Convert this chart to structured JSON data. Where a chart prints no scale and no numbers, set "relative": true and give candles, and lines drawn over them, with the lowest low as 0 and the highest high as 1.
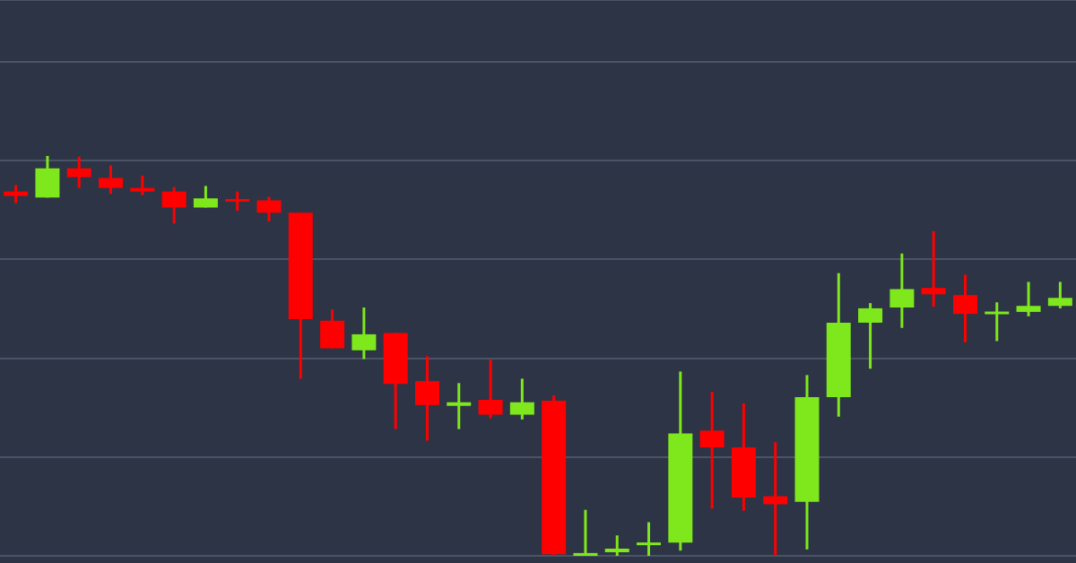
{
  "chart_data": {
    "type": "candlestick",
    "relative": true,
    "grid": "y",
    "categories": [
      null,
      null,
      null,
      null,
      null,
      null,
      null,
      null,
      null,
      null,
      null,
      null,
      null,
      null,
      null,
      null,
      null,
      null,
      null,
      null,
      null,
      null,
      null,
      null,
      null,
      null,
      null,
      null,
      null,
      null,
      null,
      null,
      null,
      null
    ],
    "ohlc": [
      [
        0.911,
        0.927,
        0.882,
        0.9
      ],
      [
        0.896,
        1,
        0.896,
        0.969
      ],
      [
        0.969,
        0.998,
        0.92,
        0.947
      ],
      [
        0.945,
        0.976,
        0.905,
        0.92
      ],
      [
        0.92,
        0.951,
        0.902,
        0.911
      ],
      [
        0.911,
        0.922,
        0.831,
        0.871
      ],
      [
        0.871,
        0.925,
        0.871,
        0.894
      ],
      [
        0.891,
        0.911,
        0.863,
        0.887
      ],
      [
        0.889,
        0.898,
        0.836,
        0.858
      ],
      [
        0.858,
        0.858,
        0.443,
        0.592
      ],
      [
        0.588,
        0.616,
        0.519,
        0.519
      ],
      [
        0.514,
        0.621,
        0.492,
        0.554
      ],
      [
        0.557,
        0.557,
        0.317,
        0.43
      ],
      [
        0.437,
        0.499,
        0.288,
        0.377
      ],
      [
        0.375,
        0.432,
        0.317,
        0.384
      ],
      [
        0.39,
        0.49,
        0.344,
        0.353
      ],
      [
        0.353,
        0.443,
        0.341,
        0.384
      ],
      [
        0.388,
        0.401,
        0,
        0.004
      ],
      [
        0,
        0.115,
        0,
        0.007
      ],
      [
        0.009,
        0.051,
        0,
        0.018
      ],
      [
        0.027,
        0.084,
        0,
        0.033
      ],
      [
        0.033,
        0.461,
        0.013,
        0.306
      ],
      [
        0.313,
        0.41,
        0.118,
        0.271
      ],
      [
        0.271,
        0.381,
        0.113,
        0.146
      ],
      [
        0.149,
        0.284,
        0,
        0.129
      ],
      [
        0.135,
        0.452,
        0.016,
        0.397
      ],
      [
        0.397,
        0.707,
        0.348,
        0.583
      ],
      [
        0.583,
        0.632,
        0.468,
        0.619
      ],
      [
        0.621,
        0.756,
        0.57,
        0.667
      ],
      [
        0.67,
        0.812,
        0.623,
        0.654
      ],
      [
        0.652,
        0.703,
        0.534,
        0.605
      ],
      [
        0.605,
        0.634,
        0.537,
        0.61
      ],
      [
        0.61,
        0.685,
        0.599,
        0.625
      ],
      [
        0.625,
        0.685,
        0.619,
        0.645
      ]
    ],
    "colors": [
      "#ff0000",
      "#7ee81c",
      "#ff0000",
      "#ff0000",
      "#ff0000",
      "#ff0000",
      "#7ee81c",
      "#ff0000",
      "#ff0000",
      "#ff0000",
      "#ff0000",
      "#7ee81c",
      "#ff0000",
      "#ff0000",
      "#7ee81c",
      "#ff0000",
      "#7ee81c",
      "#ff0000",
      "#7ee81c",
      "#7ee81c",
      "#7ee81c",
      "#7ee81c",
      "#ff0000",
      "#ff0000",
      "#ff0000",
      "#7ee81c",
      "#7ee81c",
      "#7ee81c",
      "#7ee81c",
      "#ff0000",
      "#ff0000",
      "#7ee81c",
      "#7ee81c",
      "#7ee81c"
    ]
  }
}
